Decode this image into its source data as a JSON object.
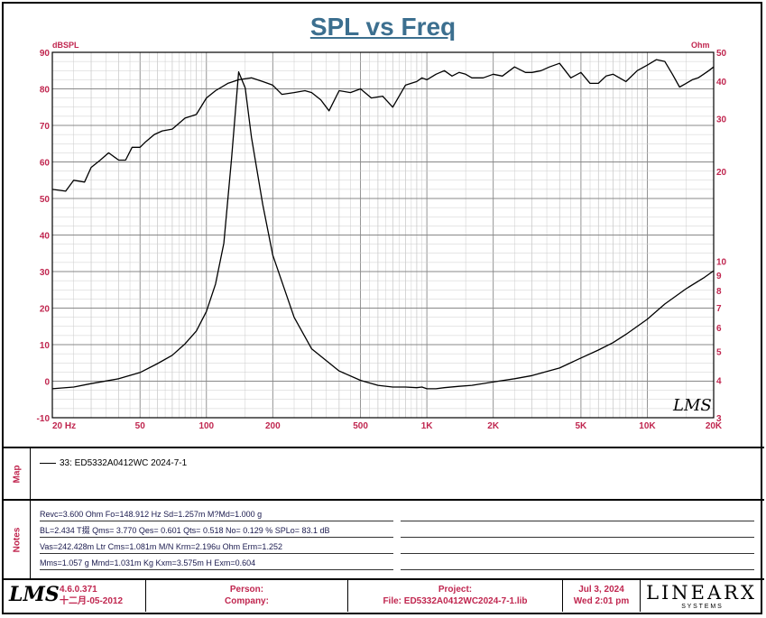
{
  "chart_data": {
    "type": "line",
    "title": "SPL vs Freq",
    "left_axis_label": "dBSPL",
    "right_axis_label": "Ohm",
    "x_scale": "log",
    "xlim": [
      20,
      20000
    ],
    "ylim_left": [
      -10,
      90
    ],
    "ylim_right": [
      3,
      50
    ],
    "y_scale_right": "log",
    "grid": true,
    "x_ticks": [
      {
        "value": 20,
        "label": "20 Hz"
      },
      {
        "value": 50,
        "label": "50"
      },
      {
        "value": 100,
        "label": "100"
      },
      {
        "value": 200,
        "label": "200"
      },
      {
        "value": 500,
        "label": "500"
      },
      {
        "value": 1000,
        "label": "1K"
      },
      {
        "value": 2000,
        "label": "2K"
      },
      {
        "value": 5000,
        "label": "5K"
      },
      {
        "value": 10000,
        "label": "10K"
      },
      {
        "value": 20000,
        "label": "20K"
      }
    ],
    "y_left_ticks": [
      {
        "value": 90,
        "label": "90"
      },
      {
        "value": 80,
        "label": "80"
      },
      {
        "value": 70,
        "label": "70"
      },
      {
        "value": 60,
        "label": "60"
      },
      {
        "value": 50,
        "label": "50"
      },
      {
        "value": 40,
        "label": "40"
      },
      {
        "value": 30,
        "label": "30"
      },
      {
        "value": 20,
        "label": "20"
      },
      {
        "value": 10,
        "label": "10"
      },
      {
        "value": 0,
        "label": "0"
      },
      {
        "value": -10,
        "label": "-10"
      }
    ],
    "y_right_ticks": [
      {
        "value": 50,
        "label": "50"
      },
      {
        "value": 40,
        "label": "40"
      },
      {
        "value": 30,
        "label": "30"
      },
      {
        "value": 20,
        "label": "20"
      },
      {
        "value": 10,
        "label": "10"
      },
      {
        "value": 9,
        "label": "9"
      },
      {
        "value": 8,
        "label": "8"
      },
      {
        "value": 7,
        "label": "7"
      },
      {
        "value": 6,
        "label": "6"
      },
      {
        "value": 5,
        "label": "5"
      },
      {
        "value": 4,
        "label": "4"
      },
      {
        "value": 3,
        "label": "3"
      }
    ],
    "series": [
      {
        "axis": "left",
        "x": [
          20,
          23,
          25,
          28,
          30,
          33,
          36,
          40,
          43,
          46,
          50,
          53,
          58,
          63,
          70,
          80,
          90,
          100,
          110,
          125,
          140,
          160,
          180,
          200,
          220,
          250,
          280,
          300,
          330,
          360,
          400,
          450,
          500,
          560,
          630,
          700,
          800,
          900,
          950,
          1000,
          1100,
          1200,
          1300,
          1400,
          1500,
          1600,
          1800,
          2000,
          2200,
          2500,
          2800,
          3000,
          3300,
          3600,
          4000,
          4500,
          5000,
          5500,
          6000,
          6500,
          7000,
          8000,
          9000,
          10000,
          11000,
          12000,
          13000,
          14000,
          15000,
          16000,
          17000,
          18000,
          19000,
          20000
        ],
        "values": [
          52.5,
          52,
          55,
          54.5,
          58.5,
          60.5,
          62.5,
          60.5,
          60.5,
          64,
          64,
          65.5,
          67.5,
          68.5,
          69,
          72,
          73,
          77.5,
          79.5,
          81.5,
          82.5,
          83,
          82,
          81,
          78.5,
          79,
          79.5,
          79,
          77,
          74,
          79.5,
          79,
          80,
          77.5,
          78,
          75,
          81,
          82,
          83,
          82.5,
          84,
          85,
          83.5,
          84.5,
          84,
          83,
          83,
          84,
          83.5,
          86,
          84.5,
          84.5,
          85,
          86,
          87,
          83,
          84.5,
          81.5,
          81.5,
          83.5,
          84,
          82,
          85,
          86.5,
          88,
          87.5,
          84,
          80.5,
          81.5,
          82.5,
          83,
          84,
          85,
          86
        ]
      },
      {
        "axis": "right",
        "x": [
          20,
          25,
          30,
          40,
          50,
          60,
          70,
          80,
          90,
          100,
          110,
          120,
          130,
          140,
          150,
          160,
          180,
          200,
          250,
          300,
          400,
          500,
          600,
          700,
          800,
          900,
          950,
          1000,
          1100,
          1200,
          1400,
          1600,
          2000,
          2500,
          3000,
          4000,
          5000,
          6000,
          7000,
          8000,
          10000,
          12000,
          15000,
          18000,
          20000
        ],
        "values": [
          3.75,
          3.8,
          3.9,
          4.05,
          4.25,
          4.55,
          4.85,
          5.3,
          5.85,
          6.8,
          8.4,
          11.5,
          22,
          43,
          38,
          26,
          15.5,
          10.5,
          6.5,
          5.1,
          4.3,
          4.0,
          3.85,
          3.8,
          3.8,
          3.78,
          3.8,
          3.75,
          3.75,
          3.78,
          3.82,
          3.85,
          3.95,
          4.05,
          4.15,
          4.4,
          4.75,
          5.05,
          5.35,
          5.7,
          6.4,
          7.2,
          8.1,
          8.8,
          9.3
        ]
      }
    ],
    "watermark": "LMS"
  },
  "map": {
    "label": "Map",
    "entry": "33: ED5332A0412WC 2024-7-1"
  },
  "notes": {
    "label": "Notes",
    "lines": [
      "Revc=3.600 Ohm  Fo=148.912 Hz  Sd=1.257m M?Md=1.000 g",
      "BL=2.434 T掇  Qms= 3.770  Qes= 0.601  Qts= 0.518  No= 0.129 %  SPLo= 83.1 dB",
      "Vas=242.428m Ltr  Cms=1.081m M/N  Krm=2.196u Ohm  Erm=1.252",
      "Mms=1.057 g  Mmd=1.031m Kg  Kxm=3.575m H  Exm=0.604"
    ]
  },
  "footer": {
    "logo": "LMS",
    "version": "4.6.0.371",
    "build_date": "十二月-05-2012",
    "person_label": "Person:",
    "company_label": "Company:",
    "project_label": "Project:",
    "file_label": "File: ED5332A0412WC2024-7-1.lib",
    "date": "Jul  3, 2024",
    "time": "Wed  2:01 pm",
    "brand": "LINEARX",
    "brand_sub": "S  Y  S  T  E  M  S"
  }
}
